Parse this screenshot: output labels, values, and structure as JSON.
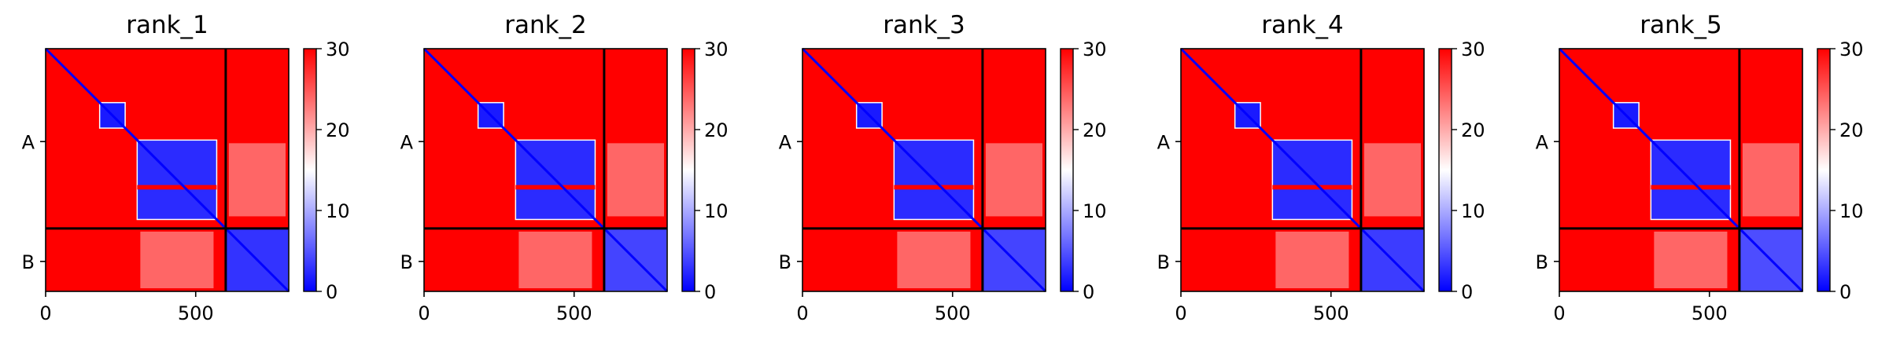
{
  "chart_data": [
    {
      "type": "heatmap",
      "title": "rank_1",
      "xlim": [
        0,
        810
      ],
      "ylim": [
        810,
        0
      ],
      "xticks": [
        {
          "value": 0,
          "label": "0"
        },
        {
          "value": 500,
          "label": "500"
        }
      ],
      "yticks": [
        {
          "value": 310,
          "label": "A"
        },
        {
          "value": 710,
          "label": "B"
        }
      ],
      "chain_boundary": 600,
      "colorbar": {
        "vmin": 0,
        "vmax": 30,
        "ticks": [
          0,
          10,
          20,
          30
        ],
        "cmap": "bwr"
      },
      "low_error_blocks": [
        {
          "x": [
            180,
            265
          ],
          "y": [
            180,
            265
          ],
          "value": 1.5
        },
        {
          "x": [
            305,
            570
          ],
          "y": [
            305,
            570
          ],
          "value": 2.5
        },
        {
          "x": [
            600,
            810
          ],
          "y": [
            600,
            810
          ],
          "value": 3.0
        }
      ],
      "gap_rows": [
        [
          455,
          470
        ]
      ],
      "gap_value": 30,
      "background_value": 30
    },
    {
      "type": "heatmap",
      "title": "rank_2",
      "xlim": [
        0,
        810
      ],
      "ylim": [
        810,
        0
      ],
      "xticks": [
        {
          "value": 0,
          "label": "0"
        },
        {
          "value": 500,
          "label": "500"
        }
      ],
      "yticks": [
        {
          "value": 310,
          "label": "A"
        },
        {
          "value": 710,
          "label": "B"
        }
      ],
      "chain_boundary": 600,
      "colorbar": {
        "vmin": 0,
        "vmax": 30,
        "ticks": [
          0,
          10,
          20,
          30
        ],
        "cmap": "bwr"
      },
      "low_error_blocks": [
        {
          "x": [
            180,
            265
          ],
          "y": [
            180,
            265
          ],
          "value": 1.5
        },
        {
          "x": [
            305,
            570
          ],
          "y": [
            305,
            570
          ],
          "value": 2.5
        },
        {
          "x": [
            600,
            810
          ],
          "y": [
            600,
            810
          ],
          "value": 4.0
        }
      ],
      "gap_rows": [
        [
          455,
          470
        ]
      ],
      "gap_value": 30,
      "background_value": 30
    },
    {
      "type": "heatmap",
      "title": "rank_3",
      "xlim": [
        0,
        810
      ],
      "ylim": [
        810,
        0
      ],
      "xticks": [
        {
          "value": 0,
          "label": "0"
        },
        {
          "value": 500,
          "label": "500"
        }
      ],
      "yticks": [
        {
          "value": 310,
          "label": "A"
        },
        {
          "value": 710,
          "label": "B"
        }
      ],
      "chain_boundary": 600,
      "colorbar": {
        "vmin": 0,
        "vmax": 30,
        "ticks": [
          0,
          10,
          20,
          30
        ],
        "cmap": "bwr"
      },
      "low_error_blocks": [
        {
          "x": [
            180,
            265
          ],
          "y": [
            180,
            265
          ],
          "value": 1.5
        },
        {
          "x": [
            305,
            570
          ],
          "y": [
            305,
            570
          ],
          "value": 2.5
        },
        {
          "x": [
            600,
            810
          ],
          "y": [
            600,
            810
          ],
          "value": 4.0
        }
      ],
      "gap_rows": [
        [
          455,
          470
        ]
      ],
      "gap_value": 30,
      "background_value": 30
    },
    {
      "type": "heatmap",
      "title": "rank_4",
      "xlim": [
        0,
        810
      ],
      "ylim": [
        810,
        0
      ],
      "xticks": [
        {
          "value": 0,
          "label": "0"
        },
        {
          "value": 500,
          "label": "500"
        }
      ],
      "yticks": [
        {
          "value": 310,
          "label": "A"
        },
        {
          "value": 710,
          "label": "B"
        }
      ],
      "chain_boundary": 600,
      "colorbar": {
        "vmin": 0,
        "vmax": 30,
        "ticks": [
          0,
          10,
          20,
          30
        ],
        "cmap": "bwr"
      },
      "low_error_blocks": [
        {
          "x": [
            180,
            265
          ],
          "y": [
            180,
            265
          ],
          "value": 1.5
        },
        {
          "x": [
            305,
            570
          ],
          "y": [
            305,
            570
          ],
          "value": 2.5
        },
        {
          "x": [
            600,
            810
          ],
          "y": [
            600,
            810
          ],
          "value": 3.5
        }
      ],
      "gap_rows": [
        [
          455,
          470
        ]
      ],
      "gap_value": 30,
      "background_value": 30
    },
    {
      "type": "heatmap",
      "title": "rank_5",
      "xlim": [
        0,
        810
      ],
      "ylim": [
        810,
        0
      ],
      "xticks": [
        {
          "value": 0,
          "label": "0"
        },
        {
          "value": 500,
          "label": "500"
        }
      ],
      "yticks": [
        {
          "value": 310,
          "label": "A"
        },
        {
          "value": 710,
          "label": "B"
        }
      ],
      "chain_boundary": 600,
      "colorbar": {
        "vmin": 0,
        "vmax": 30,
        "ticks": [
          0,
          10,
          20,
          30
        ],
        "cmap": "bwr"
      },
      "low_error_blocks": [
        {
          "x": [
            180,
            265
          ],
          "y": [
            180,
            265
          ],
          "value": 1.5
        },
        {
          "x": [
            305,
            570
          ],
          "y": [
            305,
            570
          ],
          "value": 2.5
        },
        {
          "x": [
            600,
            810
          ],
          "y": [
            600,
            810
          ],
          "value": 4.5
        }
      ],
      "gap_rows": [
        [
          455,
          470
        ]
      ],
      "gap_value": 30,
      "background_value": 30
    }
  ]
}
